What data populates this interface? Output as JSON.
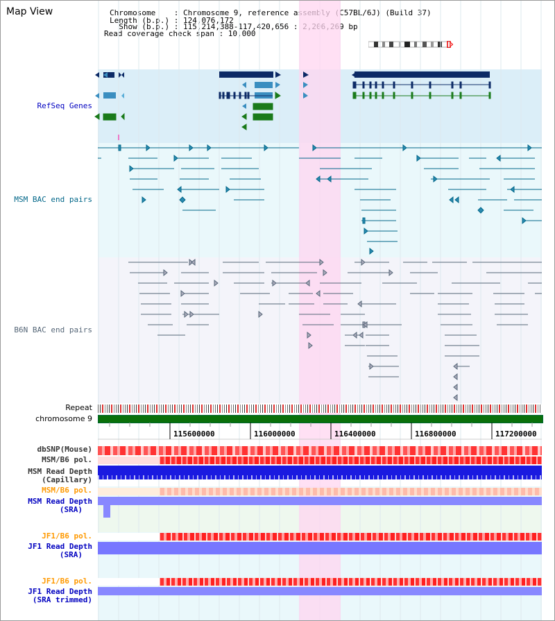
{
  "app": {
    "title": "Map View"
  },
  "header": {
    "line1": "Chromosome    : Chromosome 9, reference assembly (C57BL/6J) (Build 37)",
    "line2": "Length (b.p.) : 124,076,172",
    "line3": "  Show (b.p.) : 115,214,388-117,420,656 : 2,206,269 bp",
    "line4": "Read coverage check span : 10,000"
  },
  "tracks": {
    "refseq": {
      "label": "RefSeq Genes",
      "color": "#0000c0",
      "bg": "#dbeef8"
    },
    "msm_bac": {
      "label": "MSM BAC end pairs",
      "color": "#006688",
      "bg": "#eaf8fb"
    },
    "b6n_bac": {
      "label": "B6N BAC end pairs",
      "color": "#556677",
      "bg": "#f4f4fa"
    },
    "repeat": {
      "label": "Repeat"
    },
    "chromosome": {
      "label": "chromosome 9"
    }
  },
  "ruler": {
    "ticks": [
      "115600000",
      "116000000",
      "116400000",
      "116800000",
      "117200000"
    ]
  },
  "lower_tracks": [
    {
      "label": "dbSNP(Mouse)",
      "color": "#333333"
    },
    {
      "label": "MSM/B6 pol.",
      "color": "#333333"
    },
    {
      "label": "MSM Read Depth",
      "label2": "(Capillary)",
      "color": "#333333"
    },
    {
      "label": "MSM/B6 pol.",
      "color": "#ff9900"
    },
    {
      "label": "MSM Read Depth",
      "label2": "(SRA)",
      "color": "#0000c0"
    },
    {
      "label": "JF1/B6 pol.",
      "color": "#ff9900"
    },
    {
      "label": "JF1 Read Depth",
      "label2": "(SRA)",
      "color": "#0000c0"
    },
    {
      "label": "JF1/B6 pol.",
      "color": "#ff9900"
    },
    {
      "label": "JF1 Read Depth",
      "label2": "(SRA trimmed)",
      "color": "#0000c0"
    }
  ],
  "colors": {
    "highlight": "#ffd6f0",
    "gene_dark": "#0c2a66",
    "gene_mid": "#3a8ec0",
    "gene_green": "#1a7a1a",
    "snp_red": "#ff3333",
    "depth_blue": "#1010f0",
    "depth_sra": "#8888ff"
  }
}
